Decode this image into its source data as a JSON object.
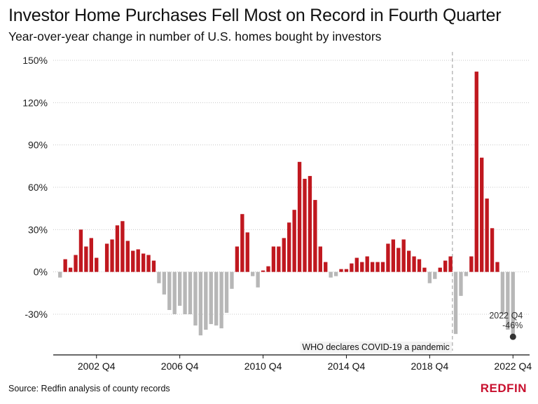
{
  "title": "Investor Home Purchases Fell Most on Record in Fourth Quarter",
  "subtitle": "Year-over-year change in number of U.S. homes bought by investors",
  "source": "Source: Redfin analysis of county records",
  "brand": "REDFIN",
  "colors": {
    "positive": "#c0181f",
    "negative": "#b7b7b7",
    "grid": "#c8c8c8",
    "marker": "#333333"
  },
  "chart_data": {
    "type": "bar",
    "title": "Investor Home Purchases Fell Most on Record in Fourth Quarter",
    "subtitle": "Year-over-year change in number of U.S. homes bought by investors",
    "ylim": [
      -55,
      155
    ],
    "yticks": [
      150,
      120,
      90,
      60,
      30,
      0,
      -30
    ],
    "ytick_labels": [
      "150%",
      "120%",
      "90%",
      "60%",
      "30%",
      "0%",
      "-30%"
    ],
    "xtick_labels": [
      "2002 Q4",
      "2006 Q4",
      "2010 Q4",
      "2014 Q4",
      "2018 Q4",
      "2022 Q4"
    ],
    "grid": true,
    "categories": [
      "2001 Q1",
      "2001 Q2",
      "2001 Q3",
      "2001 Q4",
      "2002 Q1",
      "2002 Q2",
      "2002 Q3",
      "2002 Q4",
      "2003 Q1",
      "2003 Q2",
      "2003 Q3",
      "2003 Q4",
      "2004 Q1",
      "2004 Q2",
      "2004 Q3",
      "2004 Q4",
      "2005 Q1",
      "2005 Q2",
      "2005 Q3",
      "2005 Q4",
      "2006 Q1",
      "2006 Q2",
      "2006 Q3",
      "2006 Q4",
      "2007 Q1",
      "2007 Q2",
      "2007 Q3",
      "2007 Q4",
      "2008 Q1",
      "2008 Q2",
      "2008 Q3",
      "2008 Q4",
      "2009 Q1",
      "2009 Q2",
      "2009 Q3",
      "2009 Q4",
      "2010 Q1",
      "2010 Q2",
      "2010 Q3",
      "2010 Q4",
      "2011 Q1",
      "2011 Q2",
      "2011 Q3",
      "2011 Q4",
      "2012 Q1",
      "2012 Q2",
      "2012 Q3",
      "2012 Q4",
      "2013 Q1",
      "2013 Q2",
      "2013 Q3",
      "2013 Q4",
      "2014 Q1",
      "2014 Q2",
      "2014 Q3",
      "2014 Q4",
      "2015 Q1",
      "2015 Q2",
      "2015 Q3",
      "2015 Q4",
      "2016 Q1",
      "2016 Q2",
      "2016 Q3",
      "2016 Q4",
      "2017 Q1",
      "2017 Q2",
      "2017 Q3",
      "2017 Q4",
      "2018 Q1",
      "2018 Q2",
      "2018 Q3",
      "2018 Q4",
      "2019 Q1",
      "2019 Q2",
      "2019 Q3",
      "2019 Q4",
      "2020 Q1",
      "2020 Q2",
      "2020 Q3",
      "2020 Q4",
      "2021 Q1",
      "2021 Q2",
      "2021 Q3",
      "2021 Q4",
      "2022 Q1",
      "2022 Q2",
      "2022 Q3",
      "2022 Q4"
    ],
    "values": [
      -4,
      9,
      3,
      12,
      30,
      18,
      24,
      10,
      0,
      20,
      23,
      33,
      36,
      22,
      15,
      16,
      13,
      12,
      8,
      -8,
      -16,
      -27,
      -30,
      -24,
      -30,
      -30,
      -38,
      -45,
      -41,
      -37,
      -38,
      -40,
      -29,
      -12,
      18,
      41,
      28,
      -3,
      -11,
      1,
      4,
      18,
      18,
      24,
      35,
      44,
      78,
      66,
      68,
      51,
      18,
      7,
      -4,
      -3,
      2,
      2,
      6,
      10,
      7,
      11,
      7,
      7,
      7,
      20,
      23,
      17,
      23,
      15,
      11,
      9,
      3,
      -8,
      -5,
      3,
      8,
      11,
      -44,
      -17,
      -3,
      11,
      142,
      81,
      52,
      31,
      7,
      -30,
      -41,
      -46
    ],
    "annotations": {
      "pandemic_label": "WHO declares COVID-19 a pandemic",
      "pandemic_after": "2019 Q4",
      "last_point_label": "2022 Q4",
      "last_point_value": "-46%"
    }
  }
}
